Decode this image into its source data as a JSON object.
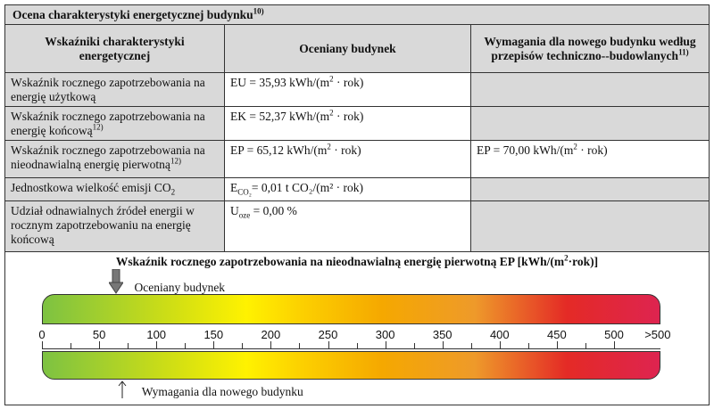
{
  "title": "Ocena charakterystyki energetycznej budynku",
  "title_sup": "10)",
  "headers": {
    "col1": "Wskaźniki charakterystyki energetycznej",
    "col2": "Oceniany budynek",
    "col3": "Wymagania dla nowego budynku według przepisów techniczno--budowlanych",
    "col3_sup": "11)"
  },
  "rows": [
    {
      "label": "Wskaźnik rocznego zapotrzebowania na energię użytkową",
      "value": "EU = 35,93 kWh/(m",
      "value_sup": "2",
      "value_tail": " · rok)"
    },
    {
      "label": "Wskaźnik rocznego zapotrzebowania na energię końcową",
      "label_sup": "12)",
      "value": "EK = 52,37 kWh/(m",
      "value_sup": "2",
      "value_tail": " · rok)"
    },
    {
      "label": "Wskaźnik rocznego zapotrzebowania na nieodnawialną energię pierwotną",
      "label_sup": "12)",
      "value": "EP = 65,12 kWh/(m",
      "value_sup": "2",
      "value_tail": " · rok)",
      "req": "EP = 70,00 kWh/(m",
      "req_sup": "2",
      "req_tail": " · rok)"
    },
    {
      "label": "Jednostkowa wielkość emisji CO",
      "label_sub": "2",
      "value": "E",
      "value_sub": "CO₂",
      "value_tail": "= 0,01 t CO₂/(m² · rok)"
    },
    {
      "label": "Udział odnawialnych źródeł energii w rocznym zapotrzebowaniu na energię końcową",
      "value": "U",
      "value_sub": "oze",
      "value_tail": " = 0,00 %"
    }
  ],
  "scale": {
    "title": "Wskaźnik rocznego zapotrzebowania na nieodnawialną energię pierwotną EP [kWh/(m",
    "title_sup": "2",
    "title_tail": "·rok)]",
    "building_label": "Oceniany budynek",
    "requirement_label": "Wymagania dla nowego budynku",
    "building_value": 65.12,
    "requirement_value": 70,
    "ticks": [
      "0",
      "50",
      "100",
      "150",
      "200",
      "250",
      "300",
      "350",
      "400",
      "450",
      "500",
      ">500"
    ],
    "max": 500
  }
}
